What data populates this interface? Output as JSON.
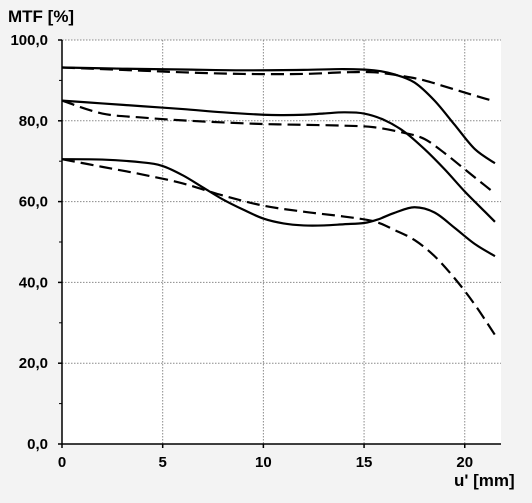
{
  "chart_data": {
    "type": "line",
    "ylabel": "MTF [%]",
    "xlabel": "u' [mm]",
    "xlim": [
      0,
      21.8
    ],
    "ylim": [
      0,
      100
    ],
    "xticks": [
      0,
      5,
      10,
      15,
      20
    ],
    "xtick_labels": [
      "0",
      "5",
      "10",
      "15",
      "20"
    ],
    "yticks": [
      0,
      20,
      40,
      60,
      80,
      100
    ],
    "ytick_labels": [
      "0,0",
      "20,0",
      "40,0",
      "60,0",
      "80,0",
      "100,0"
    ],
    "grid": true,
    "legend": "none",
    "series": [
      {
        "style": "solid",
        "x": [
          0,
          3,
          6,
          9,
          12,
          14,
          15.5,
          16.5,
          17.5,
          18.5,
          19.5,
          20.5,
          21.5
        ],
        "y": [
          93.2,
          92.9,
          92.7,
          92.5,
          92.6,
          92.8,
          92.5,
          91.5,
          89.5,
          85,
          79,
          73,
          69.5
        ]
      },
      {
        "style": "dashed",
        "x": [
          0,
          3,
          6,
          9,
          12,
          14,
          15.5,
          17,
          18,
          19,
          20,
          21,
          21.5
        ],
        "y": [
          93.2,
          92.6,
          92,
          91.6,
          91.6,
          92,
          92,
          91,
          90,
          88.5,
          87,
          85.5,
          84.8
        ]
      },
      {
        "style": "solid",
        "x": [
          0,
          2,
          4,
          6,
          8,
          10,
          11,
          12,
          13,
          14,
          15,
          16,
          17,
          18,
          19,
          20,
          21,
          21.5
        ],
        "y": [
          85,
          84.3,
          83.6,
          82.9,
          82.1,
          81.5,
          81.4,
          81.5,
          81.8,
          82.1,
          81.8,
          80.2,
          77.3,
          73,
          68,
          62.5,
          57.5,
          55
        ]
      },
      {
        "style": "dashed",
        "x": [
          0,
          2,
          4,
          6,
          8,
          10,
          12,
          14,
          15.5,
          17,
          18,
          19,
          20,
          21,
          21.5
        ],
        "y": [
          85,
          81.8,
          80.8,
          80.1,
          79.6,
          79.2,
          79.0,
          78.8,
          78.4,
          77,
          75.5,
          72,
          68,
          64,
          62
        ]
      },
      {
        "style": "solid",
        "x": [
          0,
          2,
          4,
          5,
          6,
          7,
          8,
          9,
          10,
          11,
          12,
          13,
          14,
          15,
          15.7,
          16.5,
          17.5,
          18.5,
          19.5,
          20.5,
          21.5
        ],
        "y": [
          70.5,
          70.4,
          69.7,
          68.8,
          66.5,
          63.5,
          60.5,
          58,
          55.8,
          54.6,
          54.1,
          54.1,
          54.4,
          54.7,
          55.6,
          57.2,
          58.6,
          57.3,
          53.5,
          49.5,
          46.5
        ]
      },
      {
        "style": "dashed",
        "x": [
          0,
          2,
          4,
          6,
          8,
          10,
          12,
          14,
          15.5,
          16.5,
          17.5,
          18.5,
          19.5,
          20.5,
          21.5
        ],
        "y": [
          70.5,
          68.6,
          66.7,
          64.5,
          61.5,
          59,
          57.5,
          56.3,
          55.1,
          53,
          50.5,
          46.5,
          41,
          34.5,
          27
        ]
      }
    ]
  }
}
